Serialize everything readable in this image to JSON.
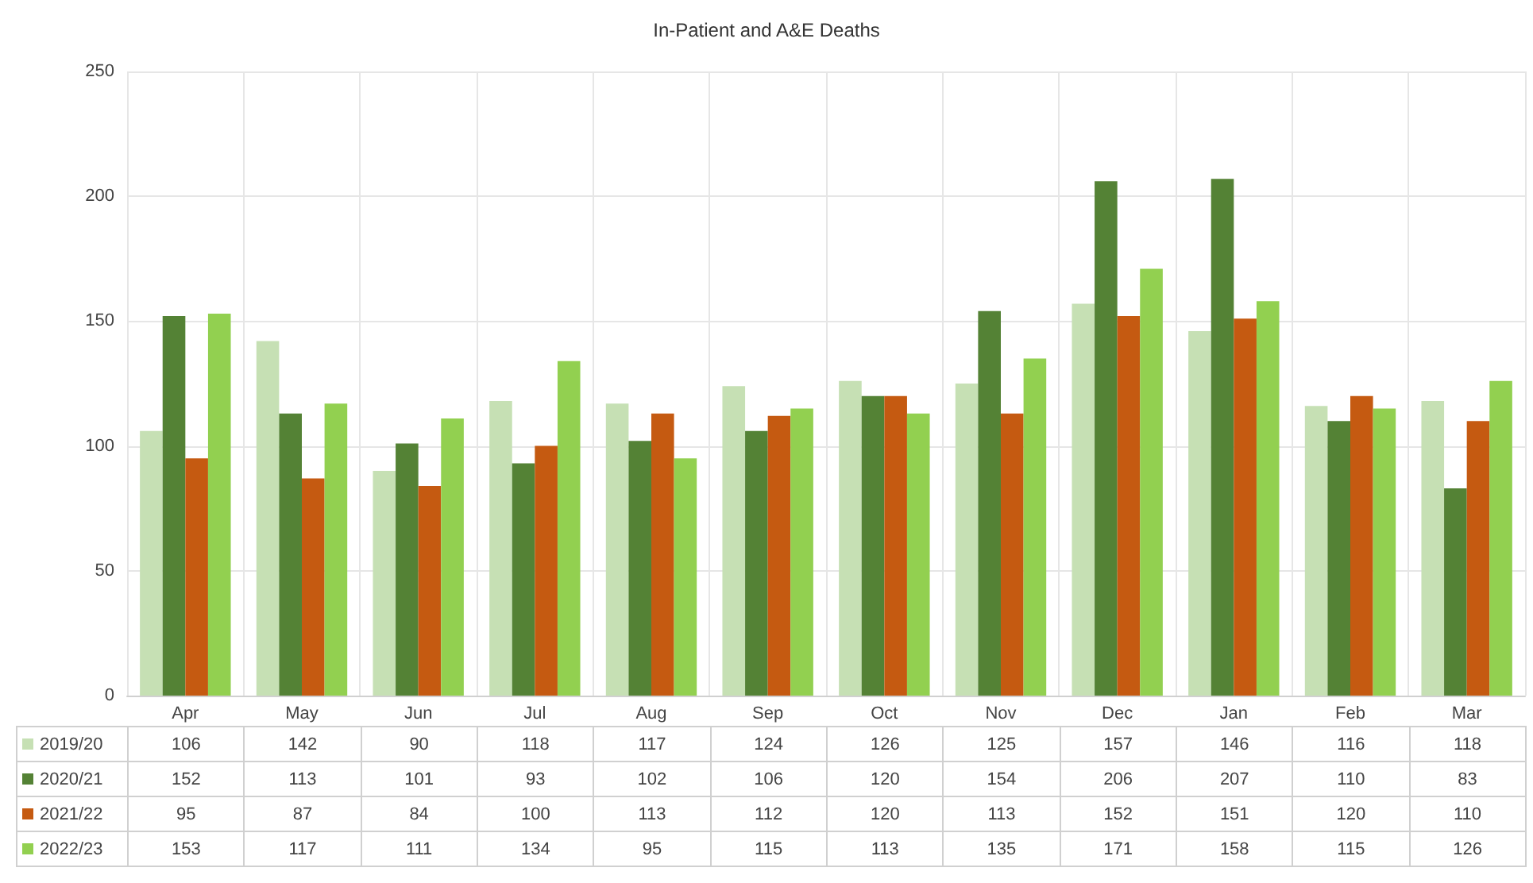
{
  "chart_data": {
    "type": "bar",
    "title": "In-Patient and A&E Deaths",
    "categories": [
      "Apr",
      "May",
      "Jun",
      "Jul",
      "Aug",
      "Sep",
      "Oct",
      "Nov",
      "Dec",
      "Jan",
      "Feb",
      "Mar"
    ],
    "series": [
      {
        "name": "2019/20",
        "color": "#c6e0b4",
        "values": [
          106,
          142,
          90,
          118,
          117,
          124,
          126,
          125,
          157,
          146,
          116,
          118
        ]
      },
      {
        "name": "2020/21",
        "color": "#548235",
        "values": [
          152,
          113,
          101,
          93,
          102,
          106,
          120,
          154,
          206,
          207,
          110,
          83
        ]
      },
      {
        "name": "2021/22",
        "color": "#c55a11",
        "values": [
          95,
          87,
          84,
          100,
          113,
          112,
          120,
          113,
          152,
          151,
          120,
          110
        ]
      },
      {
        "name": "2022/23",
        "color": "#92d050",
        "values": [
          153,
          117,
          111,
          134,
          95,
          115,
          113,
          135,
          171,
          158,
          115,
          126
        ]
      }
    ],
    "ylim": [
      0,
      250
    ],
    "yticks": [
      0,
      50,
      100,
      150,
      200,
      250
    ],
    "grid": true,
    "legend": "bottom",
    "data_labels": true
  }
}
